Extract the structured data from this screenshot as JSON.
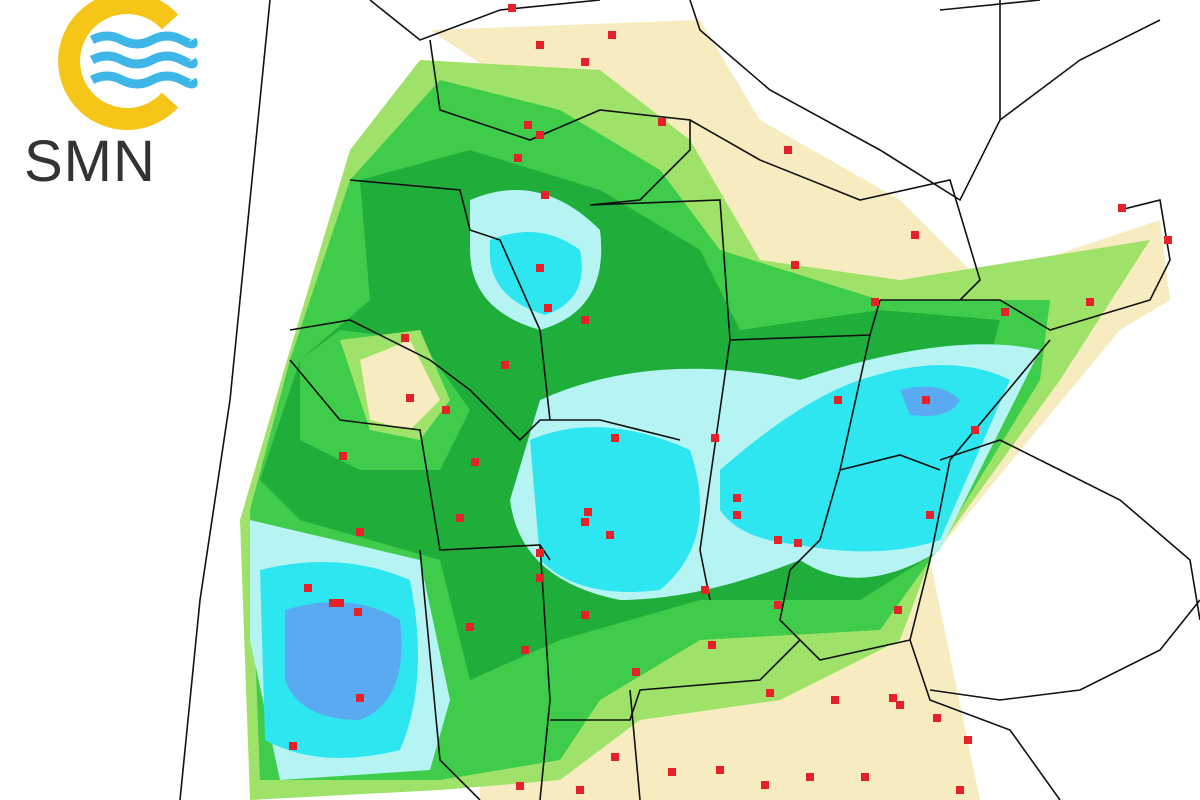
{
  "logo": {
    "text": "SMN",
    "ring_color": "#f5c518",
    "waves_color": "#3fb6e8"
  },
  "map": {
    "legend_colors": {
      "beige": "#f7ecc0",
      "light_green": "#9ee26a",
      "green": "#3fcc4a",
      "dark_green": "#1fae3a",
      "light_cyan": "#b6f4f4",
      "cyan": "#2ee6f0",
      "blue": "#5aaaf2"
    },
    "station_color": "#e8202a",
    "border_color": "#111111"
  }
}
